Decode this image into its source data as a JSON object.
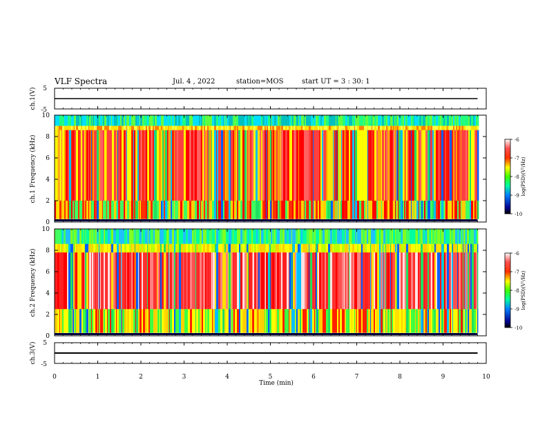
{
  "header": {
    "title": "VLF Spectra",
    "date": "Jul. 4 , 2022",
    "station": "station=MOS",
    "start": "start UT = 3 : 30: 1"
  },
  "axes": {
    "ch1_wave_label": "ch.1(V)",
    "ch3_wave_label": "ch.3(V)",
    "ch1_spec_label": "ch.1 Frequency (kHz)",
    "ch2_spec_label": "ch.2 Frequency (kHz)",
    "xlabel": "Time (min)",
    "cbar_label": "log(PSD)(V²/Hz)"
  },
  "colors": {
    "low": "#000080",
    "mid_low": "#00a0ff",
    "mid": "#00ff60",
    "mid_high": "#ffff00",
    "high": "#ff0000",
    "top": "#ffffff"
  },
  "chart_data": [
    {
      "type": "line",
      "name": "ch.1 waveform",
      "ylabel": "ch.1(V)",
      "ylim": [
        -5,
        5
      ],
      "yticks": [
        "5",
        "-5"
      ],
      "xlim": [
        0,
        10
      ],
      "x": [
        0,
        9.8
      ],
      "y": [
        0,
        0
      ]
    },
    {
      "type": "heatmap",
      "name": "ch.1 spectrogram",
      "ylabel": "ch.1 Frequency (kHz)",
      "ylim": [
        0,
        10
      ],
      "yticks": [
        "0",
        "2",
        "4",
        "6",
        "8",
        "10"
      ],
      "xlim": [
        0,
        10
      ],
      "data_extent_min": 9.8,
      "colorbar": {
        "label": "log(PSD)(V²/Hz)",
        "range": [
          -10,
          -6
        ],
        "ticks": [
          "-6",
          "-7",
          "-8",
          "-9",
          "-10"
        ]
      }
    },
    {
      "type": "heatmap",
      "name": "ch.2 spectrogram",
      "ylabel": "ch.2 Frequency (kHz)",
      "ylim": [
        0,
        10
      ],
      "yticks": [
        "0",
        "2",
        "4",
        "6",
        "8",
        "10"
      ],
      "xlim": [
        0,
        10
      ],
      "data_extent_min": 9.8,
      "colorbar": {
        "label": "log(PSD)(V²/Hz)",
        "range": [
          -10,
          -6
        ],
        "ticks": [
          "-6",
          "-7",
          "-8",
          "-9",
          "-10"
        ]
      }
    },
    {
      "type": "line",
      "name": "ch.3 waveform",
      "ylabel": "ch.3(V)",
      "ylim": [
        -5,
        5
      ],
      "yticks": [
        "5",
        "-5"
      ],
      "xlim": [
        0,
        10
      ],
      "xlabel": "Time (min)",
      "xticks": [
        "0",
        "1",
        "2",
        "3",
        "4",
        "5",
        "6",
        "7",
        "8",
        "9",
        "10"
      ],
      "x": [
        0,
        9.8
      ],
      "y": [
        0,
        0
      ]
    }
  ]
}
